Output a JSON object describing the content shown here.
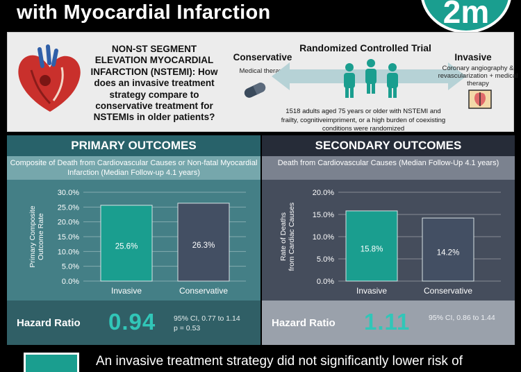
{
  "header": {
    "title": "with Myocardial Infarction",
    "badge_text": "2m"
  },
  "intro": {
    "question": "NON-ST SEGMENT ELEVATION MYOCARDIAL INFARCTION (NSTEMI): How does an invasive treatment strategy compare to conservative treatment for NSTEMIs in older patients?",
    "rct_title": "Randomized Controlled Trial",
    "conservative_title": "Conservative",
    "conservative_sub": "Medical therapy",
    "invasive_title": "Invasive",
    "invasive_sub": "Coronary angiography & revascularization + medical therapy",
    "description": "1518 adults aged 75 years or older with NSTEMI and frailty, cognitiveimpriment, or a high burden of coexisting conditions were randomized"
  },
  "primary": {
    "heading": "PRIMARY OUTCOMES",
    "subtitle": "Composite of Death from Cardiovascular Causes or Non-fatal Myocardial Infarction (Median Follow-up 4.1 years)",
    "hr_label": "Hazard Ratio",
    "hr_value": "0.94",
    "ci_text": "95% CI, 0.77 to 1.14",
    "p_text": "p = 0.53"
  },
  "secondary": {
    "heading": "SECONDARY OUTCOMES",
    "subtitle": "Death from Cardiovascular Causes (Median Follow-Up 4.1 years)",
    "hr_label": "Hazard Ratio",
    "hr_value": "1.11",
    "ci_text": "95% CI, 0.86 to 1.44"
  },
  "conclusion": {
    "text": "An invasive treatment strategy did not significantly lower risk of"
  },
  "colors": {
    "accent": "#31c6b8",
    "invasive_bar": "#1a9e8f",
    "conservative_bar": "#434f63"
  },
  "chart_data": [
    {
      "type": "bar",
      "categories": [
        "Invasive",
        "Conservative"
      ],
      "values": [
        25.6,
        26.3
      ],
      "value_labels": [
        "25.6%",
        "26.3%"
      ],
      "ylabel": "Primary Composite Outcome Rate",
      "ylim": [
        0,
        30
      ],
      "yticks": [
        "0.0%",
        "5.0%",
        "10.0%",
        "15.0%",
        "20.0%",
        "25.0%",
        "30.0%"
      ],
      "ytick_values": [
        0,
        5,
        10,
        15,
        20,
        25,
        30
      ]
    },
    {
      "type": "bar",
      "categories": [
        "Invasive",
        "Conservative"
      ],
      "values": [
        15.8,
        14.2
      ],
      "value_labels": [
        "15.8%",
        "14.2%"
      ],
      "ylabel": "Rate of Deaths from Cardiac Causes",
      "ylim": [
        0,
        20
      ],
      "yticks": [
        "0.0%",
        "5.0%",
        "10.0%",
        "15.0%",
        "20.0%"
      ],
      "ytick_values": [
        0,
        5,
        10,
        15,
        20
      ]
    }
  ]
}
